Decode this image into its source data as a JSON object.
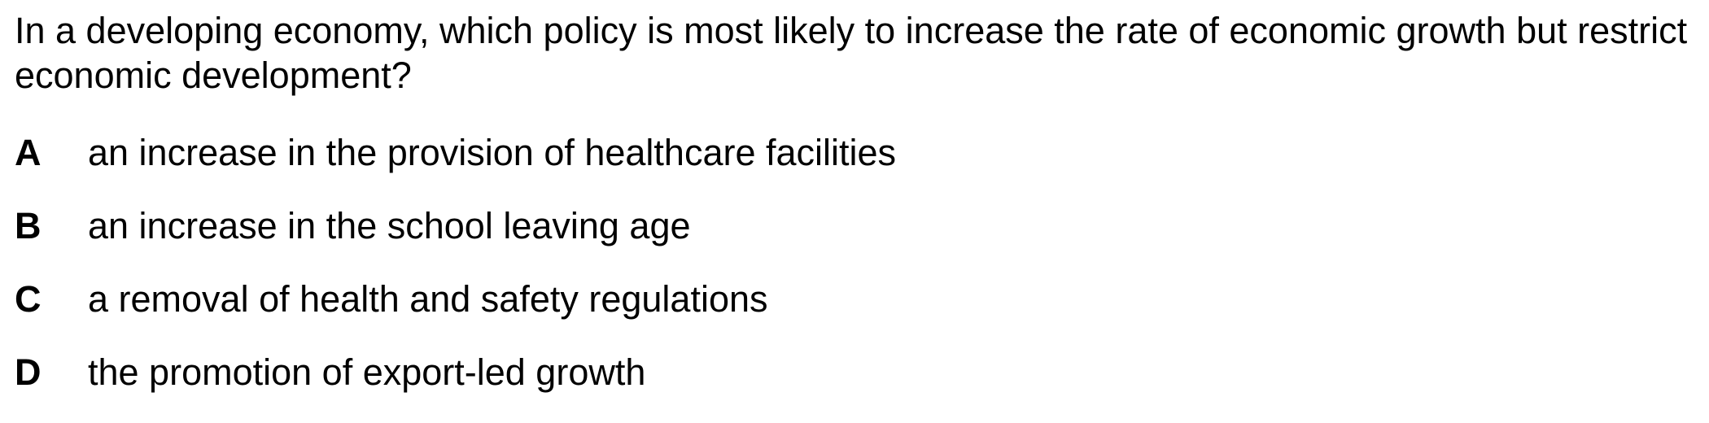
{
  "question": {
    "text": "In a developing economy, which policy is most likely to increase the rate of economic growth but restrict economic development?"
  },
  "options": [
    {
      "letter": "A",
      "text": "an increase in the provision of healthcare facilities"
    },
    {
      "letter": "B",
      "text": "an increase in the school leaving age"
    },
    {
      "letter": "C",
      "text": "a removal of health and safety regulations"
    },
    {
      "letter": "D",
      "text": "the promotion of export-led growth"
    }
  ]
}
